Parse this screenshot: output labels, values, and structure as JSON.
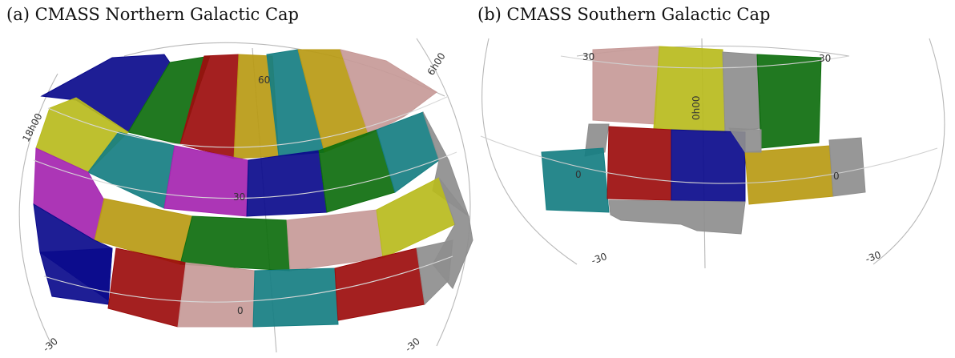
{
  "figure": {
    "panels": [
      {
        "id": "a",
        "title": "(a) CMASS Northern Galactic Cap",
        "ra_labels": [
          "18h00",
          "6h00"
        ],
        "dec_labels": [
          "60",
          "30",
          "0",
          "-30",
          "-30"
        ]
      },
      {
        "id": "b",
        "title": "(b) CMASS Southern Galactic Cap",
        "ra_labels": [
          "0h00"
        ],
        "dec_labels": [
          "30",
          "30",
          "0",
          "0",
          "-30",
          "-30"
        ]
      }
    ]
  },
  "colors": {
    "navy": "#0b0b8c",
    "green": "#0e6e0e",
    "red": "#9c0d0d",
    "gold": "#b99a14",
    "teal": "#167e82",
    "pink": "#c79a98",
    "magenta": "#a525b0",
    "olive": "#b9bb1d",
    "gray": "#8e8e8e",
    "grid": "#b8b8b8"
  }
}
